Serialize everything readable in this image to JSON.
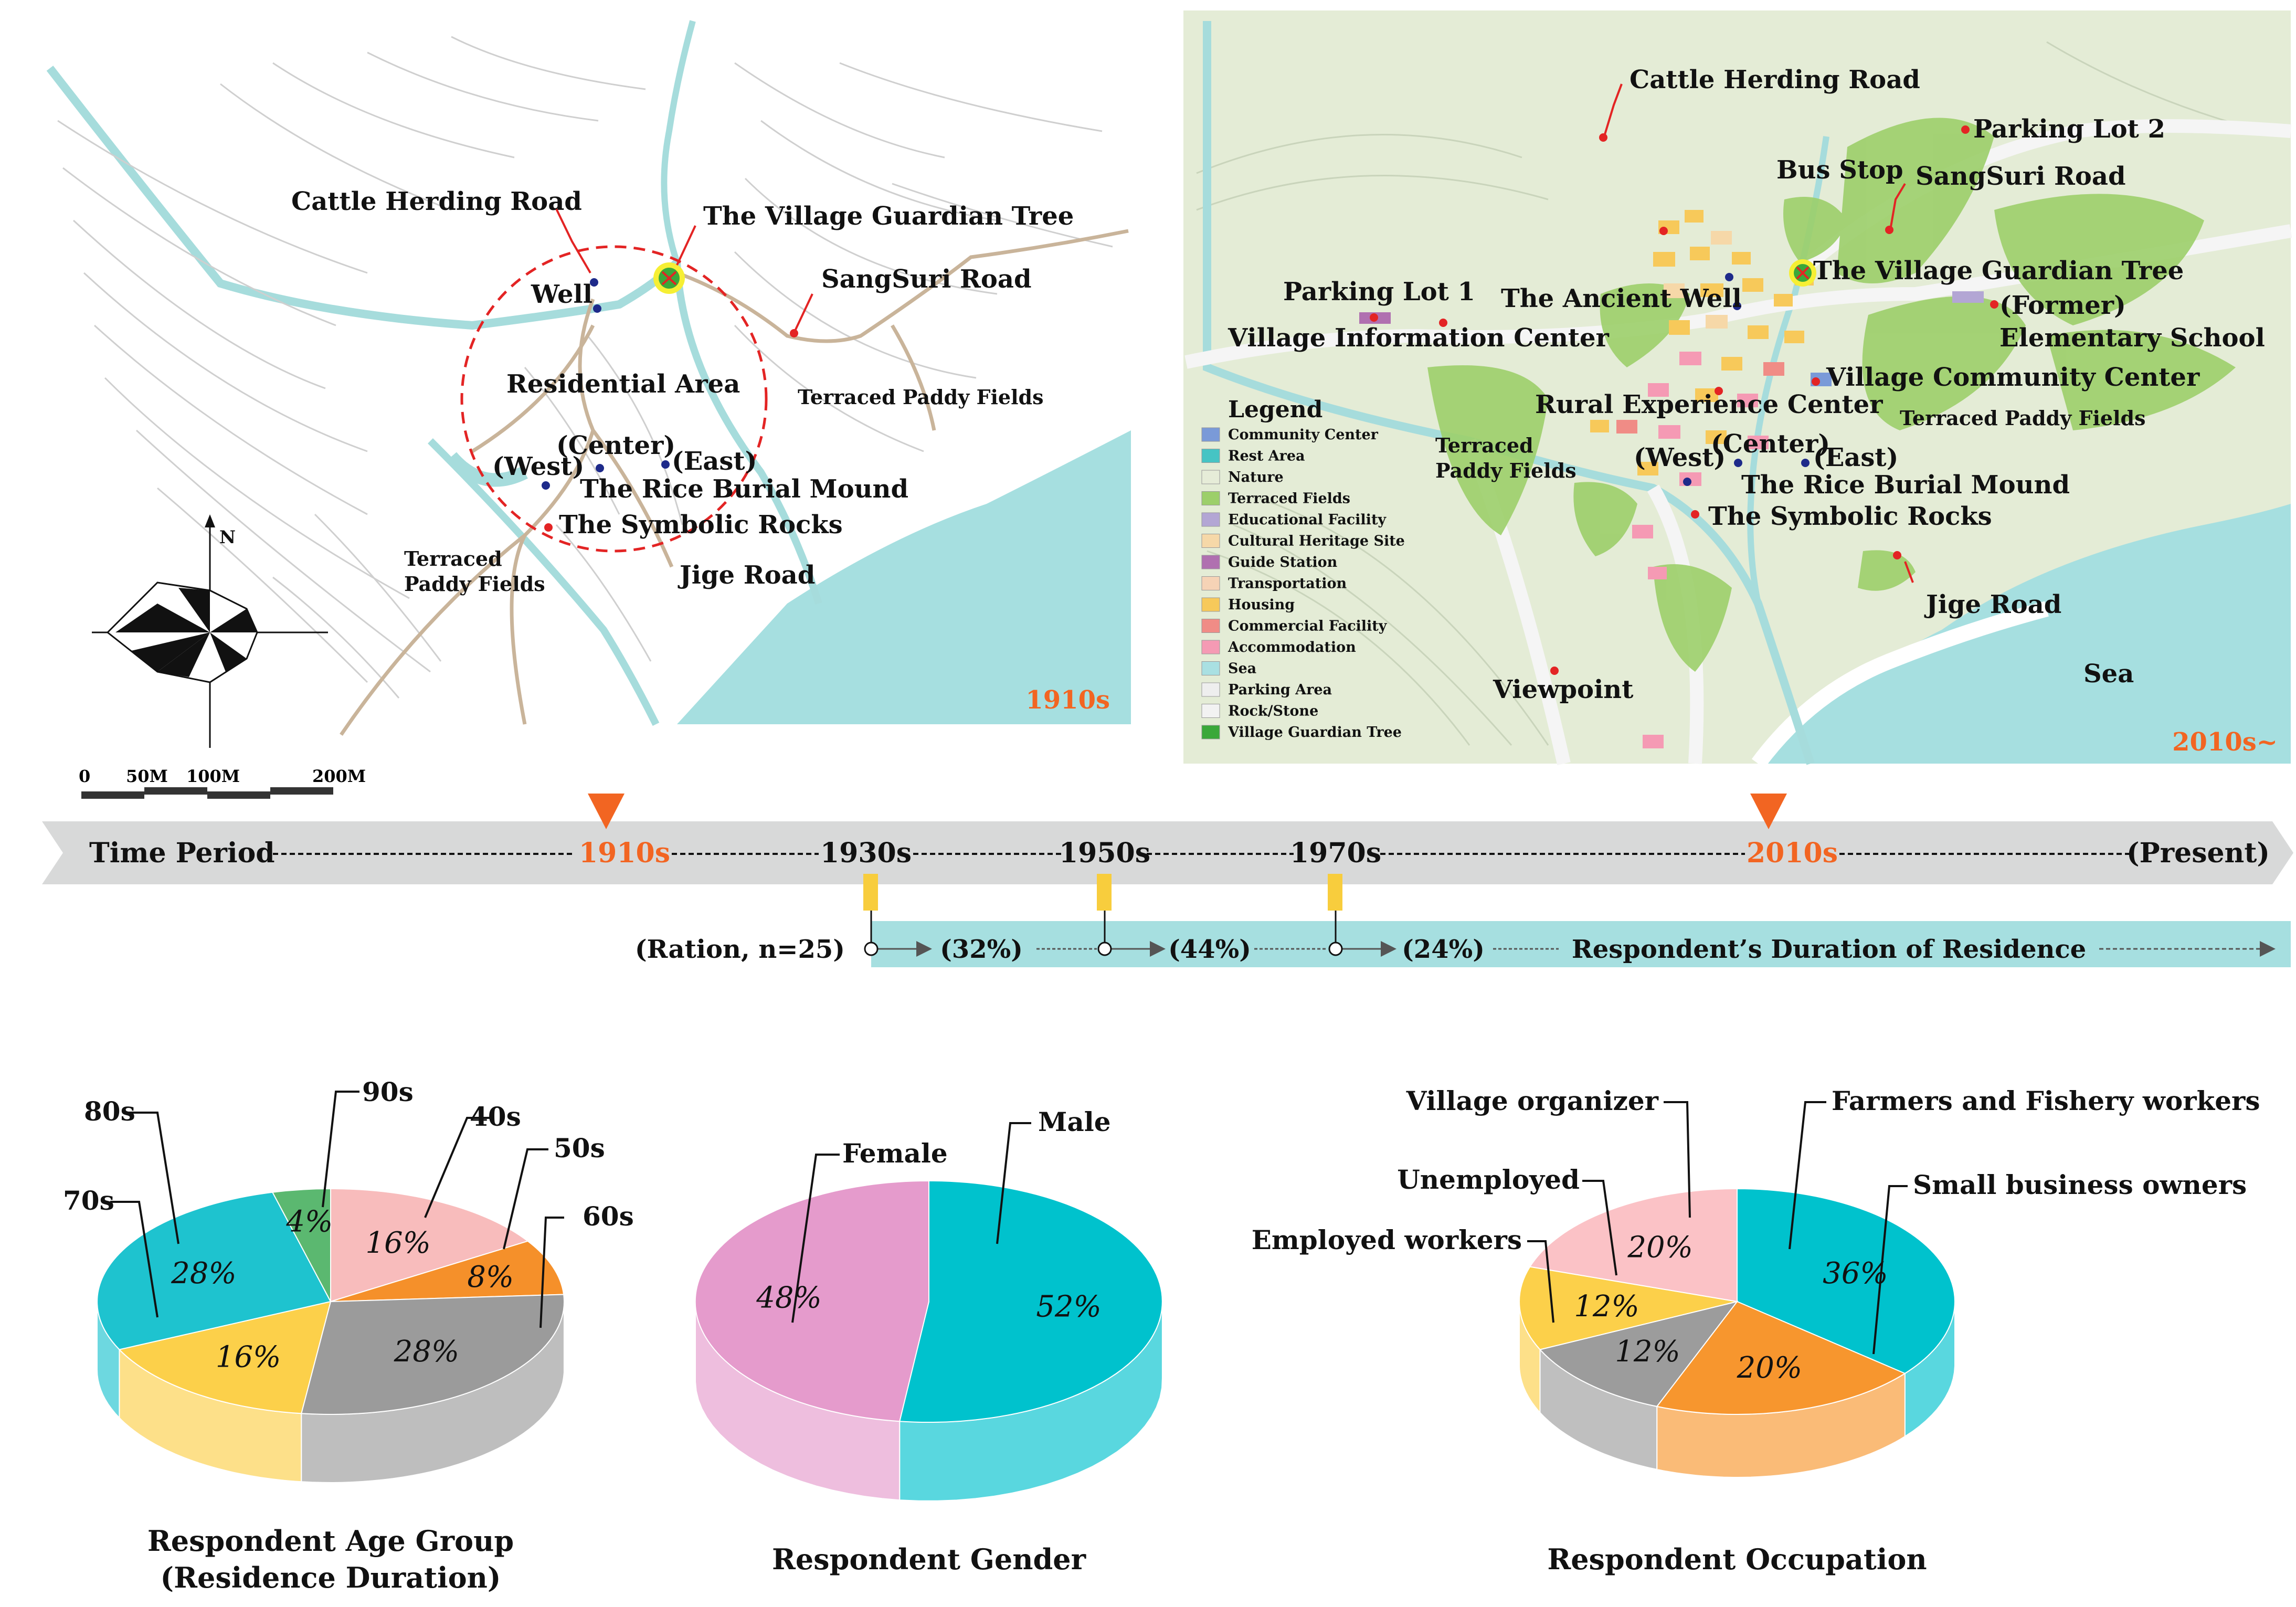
{
  "map_1910": {
    "era": "1910s",
    "labels": {
      "cattle_road": "Cattle Herding Road",
      "guardian_tree": "The Village Guardian Tree",
      "well": "Well",
      "sangsuri": "SangSuri Road",
      "residential": "Residential Area",
      "terraced_right": "Terraced Paddy Fields",
      "center": "(Center)",
      "west": "(West)",
      "east": "(East)",
      "rice_mound": "The Rice Burial Mound",
      "symbolic_rocks": "The Symbolic Rocks",
      "terraced_left_1": "Terraced",
      "terraced_left_2": "Paddy Fields",
      "jige": "Jige Road"
    },
    "compass": {
      "north": "N"
    },
    "scale": [
      "0",
      "50M",
      "100M",
      "200M"
    ]
  },
  "map_2010": {
    "era": "2010s~",
    "labels": {
      "cattle_road": "Cattle Herding Road",
      "parking2": "Parking Lot 2",
      "bus_stop": "Bus Stop",
      "sangsuri": "SangSuri Road",
      "guardian_tree": "The Village Guardian Tree",
      "parking1": "Parking Lot 1",
      "ancient_well": "The Ancient Well",
      "former": "(Former)",
      "info_center": "Village Information Center",
      "elementary": "Elementary School",
      "community": "Village Community Center",
      "rural": "Rural Experience Center",
      "terraced_right": "Terraced Paddy Fields",
      "terraced_left_1": "Terraced",
      "terraced_left_2": "Paddy Fields",
      "center": "(Center)",
      "west": "(West)",
      "east": "(East)",
      "rice_mound": "The Rice Burial Mound",
      "symbolic_rocks": "The Symbolic Rocks",
      "jige": "Jige Road",
      "viewpoint": "Viewpoint",
      "sea": "Sea"
    },
    "legend": {
      "title": "Legend",
      "items": [
        {
          "label": "Community Center",
          "color": "#7a9ad8"
        },
        {
          "label": "Rest Area",
          "color": "#46c4c4"
        },
        {
          "label": "Nature",
          "color": "#e6ecd8"
        },
        {
          "label": "Terraced Fields",
          "color": "#9ccf6a"
        },
        {
          "label": "Educational Facility",
          "color": "#b3a6d4"
        },
        {
          "label": "Cultural Heritage Site",
          "color": "#f6d8a8"
        },
        {
          "label": "Guide Station",
          "color": "#b070b0"
        },
        {
          "label": "Transportation",
          "color": "#f6d3b6"
        },
        {
          "label": "Housing",
          "color": "#f7c95a"
        },
        {
          "label": "Commercial Facility",
          "color": "#f08c86"
        },
        {
          "label": "Accommodation",
          "color": "#f59ab4"
        },
        {
          "label": "Sea",
          "color": "#a9e0e2"
        },
        {
          "label": "Parking Area",
          "color": "#eeeeee"
        },
        {
          "label": "Rock/Stone",
          "color": "#f2f2f2"
        },
        {
          "label": "Village Guardian Tree",
          "color": "#3aa83a"
        }
      ]
    }
  },
  "timeline": {
    "title": "Time Period",
    "markers": [
      "1910s",
      "1930s",
      "1950s",
      "1970s",
      "2010s",
      "(Present)"
    ],
    "highlight_color": "#f26522",
    "ration_label": "(Ration, n=25)",
    "shares": [
      "(32%)",
      "(44%)",
      "(24%)"
    ],
    "duration_label": "Respondent’s Duration of Residence"
  },
  "charts": {
    "age": {
      "title_line1": "Respondent Age Group",
      "title_line2": "(Residence Duration)",
      "labels": [
        "90s",
        "40s",
        "50s",
        "60s",
        "80s",
        "70s"
      ]
    },
    "gender": {
      "title": "Respondent Gender",
      "labels": [
        "Female",
        "Male"
      ]
    },
    "occupation": {
      "title": "Respondent Occupation",
      "labels": [
        "Village organizer",
        "Farmers and Fishery workers",
        "Unemployed",
        "Small business owners",
        "Employed workers"
      ]
    }
  },
  "chart_data": [
    {
      "type": "pie",
      "title": "Respondent Age Group (Residence Duration)",
      "slices": [
        {
          "label": "40s",
          "value": 16,
          "text": "16%",
          "color": "#f8bcbc"
        },
        {
          "label": "50s",
          "value": 8,
          "text": "8%",
          "color": "#f5902a"
        },
        {
          "label": "60s",
          "value": 28,
          "text": "28%",
          "color": "#9b9b9b"
        },
        {
          "label": "70s",
          "value": 16,
          "text": "16%",
          "color": "#fcd04a"
        },
        {
          "label": "80s",
          "value": 28,
          "text": "28%",
          "color": "#1ec3cf"
        },
        {
          "label": "90s",
          "value": 4,
          "text": "4%",
          "color": "#5bb870"
        }
      ]
    },
    {
      "type": "pie",
      "title": "Respondent Gender",
      "slices": [
        {
          "label": "Male",
          "value": 52,
          "text": "52%",
          "color": "#00c2cd"
        },
        {
          "label": "Female",
          "value": 48,
          "text": "48%",
          "color": "#e59bcc"
        }
      ]
    },
    {
      "type": "pie",
      "title": "Respondent Occupation",
      "slices": [
        {
          "label": "Farmers and Fishery workers",
          "value": 36,
          "text": "36%",
          "color": "#00c2cd"
        },
        {
          "label": "Small business owners",
          "value": 20,
          "text": "20%",
          "color": "#f7962e"
        },
        {
          "label": "Unemployed",
          "value": 12,
          "text": "12%",
          "color": "#9c9c9c"
        },
        {
          "label": "Employed workers",
          "value": 12,
          "text": "12%",
          "color": "#fcd04a"
        },
        {
          "label": "Village organizer",
          "value": 20,
          "text": "20%",
          "color": "#fbc2c6"
        }
      ]
    }
  ]
}
